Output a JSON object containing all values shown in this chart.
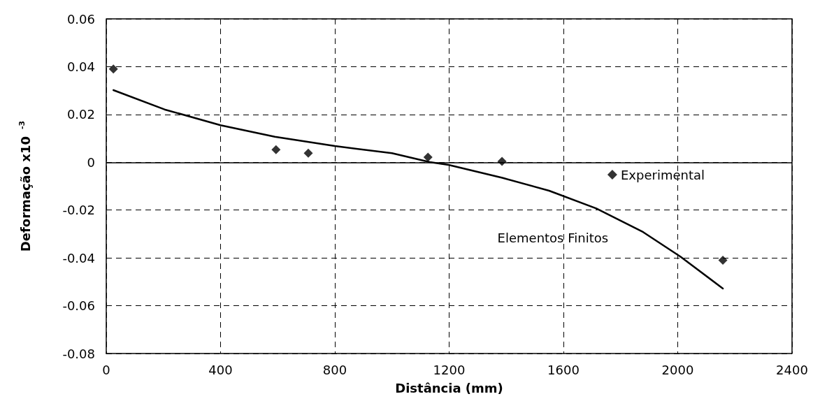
{
  "chart_data": {
    "type": "scatter",
    "xlabel": "Distância (mm)",
    "ylabel": "Deformação x10$^{-3}$",
    "xlim": [
      0,
      2400
    ],
    "xticks": [
      0,
      400,
      800,
      1200,
      1600,
      2000,
      2400
    ],
    "ylim": [
      -0.08,
      0.06
    ],
    "yticks": [
      -0.08,
      -0.06,
      -0.04,
      -0.02,
      0,
      0.02,
      0.04,
      0.06
    ],
    "grid": true,
    "legend": "right",
    "ref_lines": [
      {
        "axis": "y",
        "value": 0,
        "color": "#000000",
        "line_style": "solid"
      }
    ],
    "annotations": [
      "Elementos Finitos"
    ],
    "series": [
      {
        "name": "Experimental",
        "marker": "diamond",
        "color": "#000000",
        "x": [
          25,
          594,
          707,
          1126,
          1385,
          2158
        ],
        "values": [
          0.039,
          0.0053,
          0.0038,
          0.0021,
          0.0004,
          -0.041
        ]
      },
      {
        "type": "line",
        "marker": "none",
        "line_style": "solid",
        "color": "#000000",
        "x": [
          25,
          204,
          400,
          590,
          800,
          1000,
          1132,
          1198,
          1386,
          1550,
          1715,
          1879,
          2010,
          2158
        ],
        "values": [
          0.0302,
          0.0221,
          0.0155,
          0.0107,
          0.0068,
          0.0038,
          0.0001,
          -0.0011,
          -0.0065,
          -0.0119,
          -0.0193,
          -0.0292,
          -0.0395,
          -0.0528
        ]
      }
    ]
  }
}
